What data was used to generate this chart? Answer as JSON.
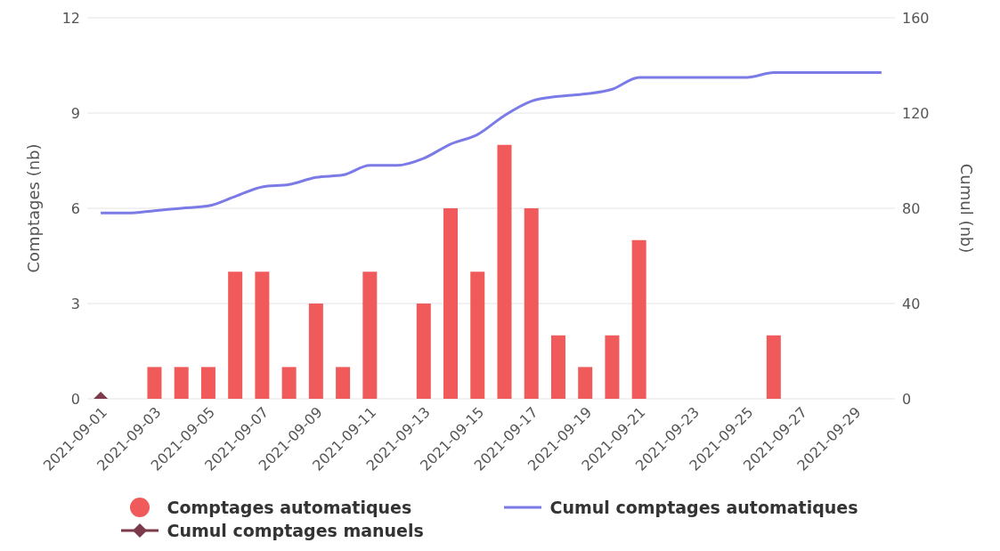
{
  "chart_data": {
    "type": "bar",
    "ylabel": "Comptages (nb)",
    "y2label": "Cumul (nb)",
    "categories": [
      "2021-09-01",
      null,
      "2021-09-03",
      null,
      "2021-09-05",
      null,
      "2021-09-07",
      null,
      "2021-09-09",
      null,
      "2021-09-11",
      null,
      "2021-09-13",
      null,
      "2021-09-15",
      null,
      "2021-09-17",
      null,
      "2021-09-19",
      null,
      "2021-09-21",
      null,
      "2021-09-23",
      null,
      "2021-09-25",
      null,
      "2021-09-27",
      null,
      "2021-09-29",
      null
    ],
    "series": [
      {
        "name": "Comptages automatiques",
        "color": "#f05a5a",
        "values": [
          null,
          0,
          1,
          1,
          1,
          4,
          4,
          1,
          3,
          1,
          4,
          0,
          3,
          6,
          4,
          8,
          6,
          2,
          1,
          2,
          5,
          0,
          0,
          0,
          0,
          2,
          0,
          0,
          0,
          0
        ]
      },
      {
        "name": "Cumul comptages automatiques",
        "type": "line",
        "axis": "y2",
        "color": "#7b7be8",
        "marker": "none",
        "values": [
          78,
          78,
          79,
          80,
          81,
          85,
          89,
          90,
          93,
          94,
          98,
          98,
          101,
          107,
          111,
          119,
          125,
          127,
          128,
          130,
          135,
          135,
          135,
          135,
          135,
          137,
          137,
          137,
          137,
          137
        ]
      },
      {
        "name": "Cumul comptages manuels",
        "type": "line",
        "axis": "y2",
        "color": "#7d3a4a",
        "marker": "diamond",
        "values": [
          0,
          null,
          null,
          null,
          null,
          null,
          null,
          null,
          null,
          null,
          null,
          null,
          null,
          null,
          null,
          null,
          null,
          null,
          null,
          null,
          null,
          null,
          null,
          null,
          null,
          null,
          null,
          null,
          null,
          null
        ]
      }
    ],
    "ylim": [
      0,
      12
    ],
    "yticks": [
      0,
      3,
      6,
      9,
      12
    ],
    "y2lim": [
      0,
      160
    ],
    "y2ticks": [
      0,
      40,
      80,
      120,
      160
    ],
    "grid": "y",
    "legend": "bottom"
  }
}
